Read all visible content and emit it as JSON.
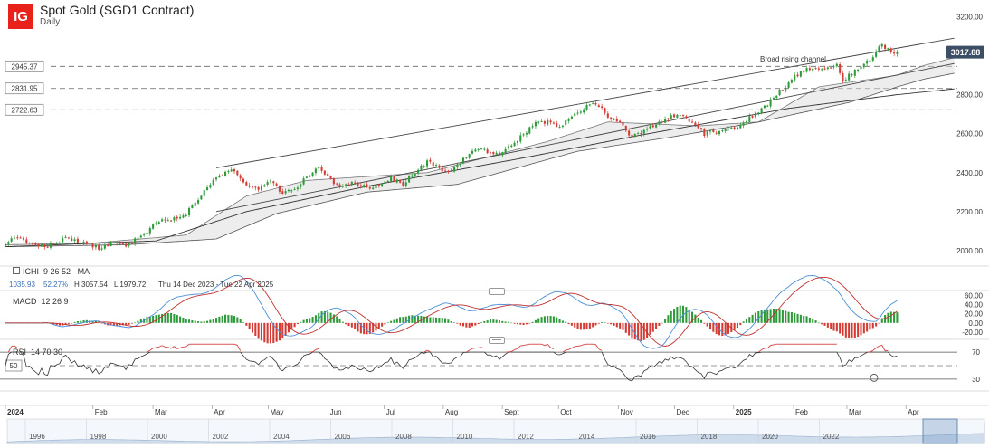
{
  "header": {
    "logo_text": "IG",
    "title": "Spot Gold (SGD1 Contract)",
    "subtitle": "Daily"
  },
  "colors": {
    "up": "#2e9a3a",
    "down": "#d43b34",
    "ma": "#c03030",
    "macd": "#4a8fd8",
    "rsi": "#d24040",
    "logo": "#e8221b",
    "price_tag": "#3c4e66"
  },
  "chart_data": {
    "type": "candlestick",
    "title": "Spot Gold (SGD1 Contract)",
    "timeframe": "Daily",
    "date_range": "Thu 14 Dec 2023 - Tue 22 Apr 2025",
    "ylim": [
      1930,
      3230
    ],
    "y_ticks": [
      2000,
      2200,
      2400,
      2600,
      2800,
      3000,
      3200
    ],
    "y_tick_labels": [
      "2000.00",
      "2200.00",
      "2400.00",
      "2600.00",
      "2800.00",
      "3000.00",
      "3200.00"
    ],
    "last_price": "3017.88",
    "support_levels": [
      {
        "value": 2945.37,
        "label": "2945.37"
      },
      {
        "value": 2831.95,
        "label": "2831.95"
      },
      {
        "value": 2722.63,
        "label": "2722.63"
      }
    ],
    "annotation": "Broad rising channel",
    "x_months": [
      {
        "label": "2024",
        "pos": 0.0,
        "bold": true
      },
      {
        "label": "Feb",
        "pos": 0.092
      },
      {
        "label": "Mar",
        "pos": 0.155
      },
      {
        "label": "Apr",
        "pos": 0.217
      },
      {
        "label": "May",
        "pos": 0.276
      },
      {
        "label": "Jun",
        "pos": 0.339
      },
      {
        "label": "Jul",
        "pos": 0.398
      },
      {
        "label": "Aug",
        "pos": 0.46
      },
      {
        "label": "Sept",
        "pos": 0.522
      },
      {
        "label": "Oct",
        "pos": 0.581
      },
      {
        "label": "Nov",
        "pos": 0.644
      },
      {
        "label": "Dec",
        "pos": 0.703
      },
      {
        "label": "2025",
        "pos": 0.765,
        "bold": true
      },
      {
        "label": "Feb",
        "pos": 0.828
      },
      {
        "label": "Mar",
        "pos": 0.884
      },
      {
        "label": "Apr",
        "pos": 0.946
      }
    ],
    "close_keypoints": [
      [
        0,
        2040
      ],
      [
        4,
        2065
      ],
      [
        8,
        2040
      ],
      [
        13,
        2020
      ],
      [
        20,
        2060
      ],
      [
        26,
        2040
      ],
      [
        32,
        2010
      ],
      [
        36,
        2045
      ],
      [
        40,
        2030
      ],
      [
        44,
        2060
      ],
      [
        48,
        2110
      ],
      [
        52,
        2170
      ],
      [
        56,
        2160
      ],
      [
        60,
        2190
      ],
      [
        64,
        2260
      ],
      [
        68,
        2340
      ],
      [
        72,
        2390
      ],
      [
        76,
        2410
      ],
      [
        80,
        2330
      ],
      [
        84,
        2320
      ],
      [
        88,
        2350
      ],
      [
        92,
        2300
      ],
      [
        96,
        2310
      ],
      [
        100,
        2380
      ],
      [
        104,
        2420
      ],
      [
        108,
        2360
      ],
      [
        112,
        2330
      ],
      [
        116,
        2350
      ],
      [
        120,
        2320
      ],
      [
        124,
        2340
      ],
      [
        128,
        2370
      ],
      [
        132,
        2340
      ],
      [
        136,
        2400
      ],
      [
        140,
        2460
      ],
      [
        144,
        2420
      ],
      [
        148,
        2410
      ],
      [
        152,
        2470
      ],
      [
        156,
        2520
      ],
      [
        160,
        2510
      ],
      [
        164,
        2500
      ],
      [
        168,
        2540
      ],
      [
        172,
        2600
      ],
      [
        176,
        2650
      ],
      [
        180,
        2660
      ],
      [
        184,
        2640
      ],
      [
        188,
        2680
      ],
      [
        192,
        2730
      ],
      [
        196,
        2760
      ],
      [
        200,
        2690
      ],
      [
        204,
        2650
      ],
      [
        208,
        2580
      ],
      [
        212,
        2610
      ],
      [
        216,
        2650
      ],
      [
        220,
        2680
      ],
      [
        224,
        2700
      ],
      [
        228,
        2660
      ],
      [
        232,
        2600
      ],
      [
        236,
        2610
      ],
      [
        240,
        2620
      ],
      [
        244,
        2650
      ],
      [
        248,
        2690
      ],
      [
        252,
        2740
      ],
      [
        256,
        2800
      ],
      [
        260,
        2860
      ],
      [
        264,
        2920
      ],
      [
        268,
        2940
      ],
      [
        272,
        2930
      ],
      [
        276,
        2960
      ],
      [
        278,
        2860
      ],
      [
        280,
        2900
      ],
      [
        284,
        2940
      ],
      [
        288,
        2990
      ],
      [
        290,
        3057
      ],
      [
        294,
        3020
      ],
      [
        296,
        3017
      ]
    ],
    "ichimoku_a": [
      [
        0,
        2030
      ],
      [
        30,
        2040
      ],
      [
        60,
        2080
      ],
      [
        80,
        2280
      ],
      [
        100,
        2360
      ],
      [
        140,
        2400
      ],
      [
        180,
        2560
      ],
      [
        200,
        2660
      ],
      [
        230,
        2640
      ],
      [
        250,
        2660
      ],
      [
        270,
        2840
      ],
      [
        296,
        2900
      ]
    ],
    "ichimoku_b": [
      [
        0,
        2020
      ],
      [
        40,
        2030
      ],
      [
        70,
        2060
      ],
      [
        90,
        2190
      ],
      [
        120,
        2300
      ],
      [
        150,
        2340
      ],
      [
        190,
        2510
      ],
      [
        220,
        2580
      ],
      [
        250,
        2660
      ],
      [
        280,
        2760
      ],
      [
        296,
        2840
      ]
    ],
    "ichimoku_ext": [
      [
        296,
        2900
      ],
      [
        305,
        2950
      ],
      [
        315,
        2990
      ]
    ],
    "ichimoku_ext_b": [
      [
        296,
        2840
      ],
      [
        305,
        2880
      ],
      [
        315,
        2910
      ]
    ],
    "base_line": [
      [
        0,
        2020
      ],
      [
        50,
        2050
      ],
      [
        80,
        2200
      ],
      [
        120,
        2330
      ],
      [
        170,
        2470
      ],
      [
        210,
        2590
      ],
      [
        260,
        2730
      ],
      [
        296,
        2800
      ],
      [
        315,
        2830
      ]
    ],
    "channel_upper": [
      [
        70,
        2425
      ],
      [
        315,
        3090
      ]
    ],
    "channel_lower": [
      [
        70,
        2200
      ],
      [
        315,
        2960
      ]
    ],
    "indicators": {
      "ichimoku": {
        "name": "ICHI",
        "params": "9  26  52",
        "values": [
          "1035.93",
          "52.27%",
          "H 3057.54",
          "L 1979.72"
        ]
      },
      "ma": {
        "name": "MA"
      },
      "macd": {
        "name": "MACD",
        "params": "12  26  9",
        "ylim": [
          -30,
          65
        ],
        "ticks": [
          60,
          40,
          20,
          0,
          -20
        ],
        "tick_labels": [
          "60.00",
          "40.00",
          "20.00",
          "0.00",
          "-20.00"
        ]
      },
      "rsi": {
        "name": "RSI",
        "params": "14  70  30",
        "levels": [
          70,
          50,
          30
        ],
        "level_labels": [
          "70",
          "50",
          "30"
        ]
      }
    },
    "navigator_years": [
      "1996",
      "1998",
      "2000",
      "2002",
      "2004",
      "2006",
      "2008",
      "2010",
      "2012",
      "2014",
      "2016",
      "2018",
      "2020",
      "2022"
    ]
  }
}
